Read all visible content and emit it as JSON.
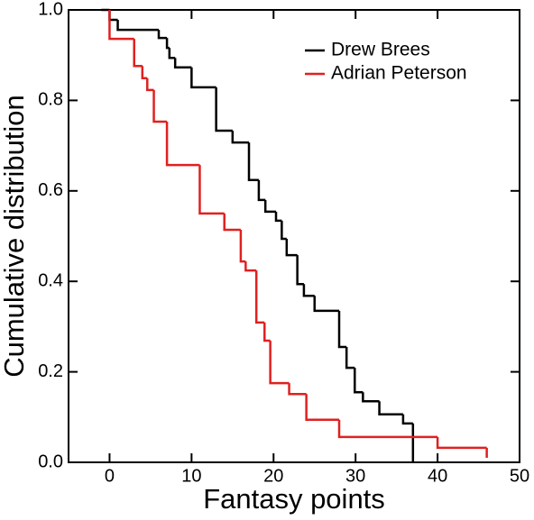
{
  "chart_data": {
    "type": "step",
    "x_label": "Fantasy points",
    "y_label": "Cumulative distribution",
    "xlim": [
      -5,
      50
    ],
    "xticks": [
      0,
      10,
      20,
      30,
      40,
      50
    ],
    "ylim": [
      0,
      1
    ],
    "yticks": [
      {
        "value": 0,
        "label": "0.0"
      },
      0.2,
      0.4,
      0.6,
      0.8,
      {
        "value": 1,
        "label": "1.0"
      }
    ],
    "legend": "upper-right",
    "series": [
      {
        "name": "Drew Brees",
        "color": "#000000",
        "x": [
          -1,
          0,
          1,
          6,
          7,
          7.3,
          8,
          10,
          13,
          15,
          17,
          18.2,
          19,
          20.3,
          21,
          21.6,
          22.9,
          23.7,
          25,
          28,
          28.9,
          29.9,
          30.9,
          32.9,
          35.8,
          37
        ],
        "values": [
          1.0,
          0.978,
          0.956,
          0.938,
          0.916,
          0.894,
          0.873,
          0.829,
          0.733,
          0.707,
          0.624,
          0.58,
          0.554,
          0.534,
          0.494,
          0.458,
          0.394,
          0.368,
          0.335,
          0.255,
          0.209,
          0.155,
          0.135,
          0.106,
          0.086,
          0
        ]
      },
      {
        "name": "Adrian Peterson",
        "color": "#e02020",
        "x": [
          0,
          0,
          3,
          4,
          4.6,
          5.4,
          7,
          11,
          14,
          16,
          16.6,
          17.9,
          18.9,
          19.6,
          21.9,
          24,
          28,
          40,
          46
        ],
        "values": [
          1.0,
          0.936,
          0.876,
          0.849,
          0.823,
          0.753,
          0.657,
          0.55,
          0.514,
          0.444,
          0.424,
          0.309,
          0.269,
          0.175,
          0.151,
          0.094,
          0.056,
          0.032,
          0.01
        ]
      }
    ]
  }
}
